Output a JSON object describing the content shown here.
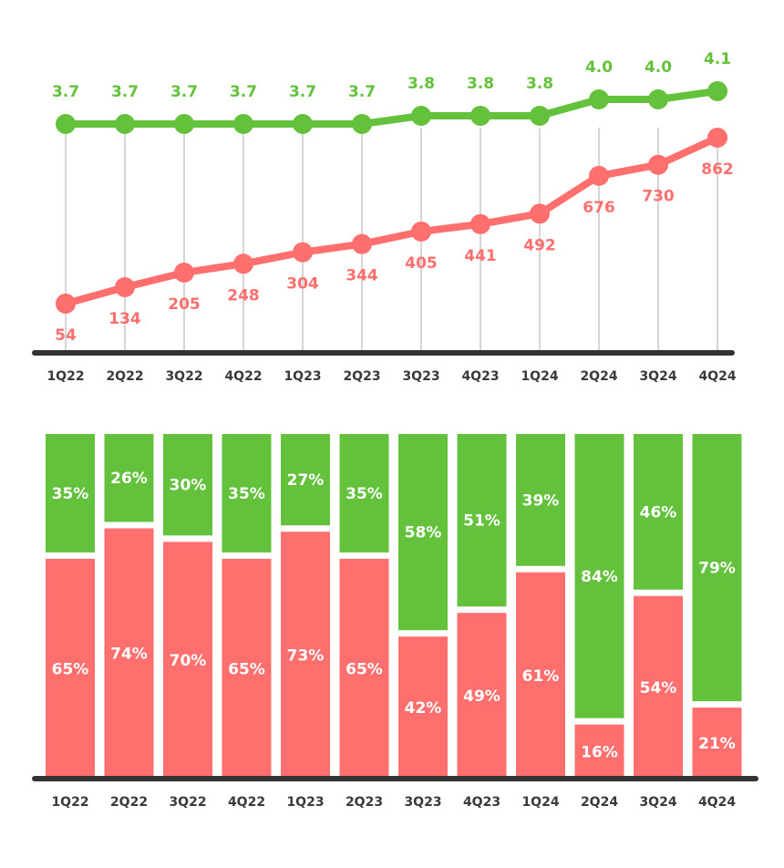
{
  "colors": {
    "green": "#63c13c",
    "red": "#ff6f6e",
    "axis": "#333333",
    "grid": "#d6d6d6",
    "tick_text": "#3a3a3a",
    "bar_text": "#ffffff"
  },
  "chart_data": [
    {
      "type": "line",
      "categories": [
        "1Q22",
        "2Q22",
        "3Q22",
        "4Q22",
        "1Q23",
        "2Q23",
        "3Q23",
        "4Q23",
        "1Q24",
        "2Q24",
        "3Q24",
        "4Q24"
      ],
      "series": [
        {
          "values": [
            3.7,
            3.7,
            3.7,
            3.7,
            3.7,
            3.7,
            3.8,
            3.8,
            3.8,
            4.0,
            4.0,
            4.1
          ],
          "labels": [
            "3.7",
            "3.7",
            "3.7",
            "3.7",
            "3.7",
            "3.7",
            "3.8",
            "3.8",
            "3.8",
            "4.0",
            "4.0",
            "4.1"
          ],
          "color": "#63c13c"
        },
        {
          "values": [
            54,
            134,
            205,
            248,
            304,
            344,
            405,
            441,
            492,
            676,
            730,
            862
          ],
          "labels": [
            "54",
            "134",
            "205",
            "248",
            "304",
            "344",
            "405",
            "441",
            "492",
            "676",
            "730",
            "862"
          ],
          "color": "#ff6f6e"
        }
      ],
      "grid": "vertical",
      "legend": "none"
    },
    {
      "type": "bar",
      "stacked": true,
      "percent": true,
      "categories": [
        "1Q22",
        "2Q22",
        "3Q22",
        "4Q22",
        "1Q23",
        "2Q23",
        "3Q23",
        "4Q23",
        "1Q24",
        "2Q24",
        "3Q24",
        "4Q24"
      ],
      "series": [
        {
          "values": [
            65,
            74,
            70,
            65,
            73,
            65,
            42,
            49,
            61,
            16,
            54,
            21
          ],
          "labels": [
            "65%",
            "74%",
            "70%",
            "65%",
            "73%",
            "65%",
            "42%",
            "49%",
            "61%",
            "16%",
            "54%",
            "21%"
          ],
          "color": "#ff6f6e"
        },
        {
          "values": [
            35,
            26,
            30,
            35,
            27,
            35,
            58,
            51,
            39,
            84,
            46,
            79
          ],
          "labels": [
            "35%",
            "26%",
            "30%",
            "35%",
            "27%",
            "35%",
            "58%",
            "51%",
            "39%",
            "84%",
            "46%",
            "79%"
          ],
          "color": "#63c13c"
        }
      ],
      "legend": "none"
    }
  ]
}
